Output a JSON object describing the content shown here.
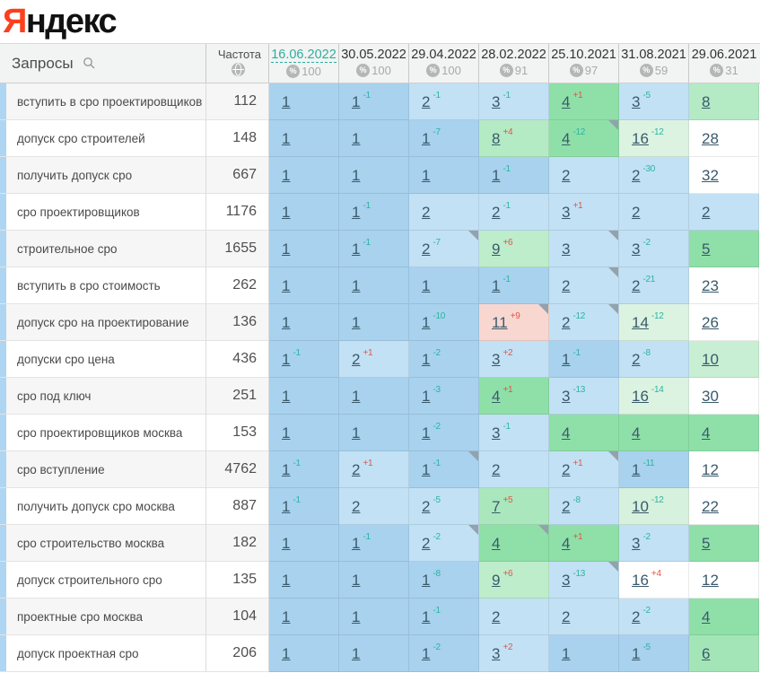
{
  "logo": {
    "first": "Я",
    "rest": "ндекс"
  },
  "palette": {
    "brand_red": "#fc3f1d",
    "selected_date": "#2eae9c",
    "delta_good": "#2cb3a0",
    "delta_bad": "#e25449",
    "position_link": "#3a5a6b",
    "stripe_blue": "#aed6f2",
    "cell_blue": "#a8d2ee",
    "cell_lightblue": "#c2e1f5",
    "cell_green": "#8ee0a8",
    "cell_pink": "#f8d7d1"
  },
  "header": {
    "queries_label": "Запросы",
    "frequency_label": "Частота",
    "columns": [
      {
        "date": "16.06.2022",
        "coverage": "100",
        "selected": true
      },
      {
        "date": "30.05.2022",
        "coverage": "100",
        "selected": false
      },
      {
        "date": "29.04.2022",
        "coverage": "100",
        "selected": false
      },
      {
        "date": "28.02.2022",
        "coverage": "91",
        "selected": false
      },
      {
        "date": "25.10.2021",
        "coverage": "97",
        "selected": false
      },
      {
        "date": "31.08.2021",
        "coverage": "59",
        "selected": false
      },
      {
        "date": "29.06.2021",
        "coverage": "31",
        "selected": false
      }
    ]
  },
  "table": {
    "rows": [
      {
        "keyword": "вступить в сро проектировщиков",
        "frequency": "112",
        "cells": [
          {
            "pos": "1",
            "bg": "#a8d2ee"
          },
          {
            "pos": "1",
            "delta": "-1",
            "bg": "#a8d2ee"
          },
          {
            "pos": "2",
            "delta": "-1",
            "bg": "#c2e1f5"
          },
          {
            "pos": "3",
            "delta": "-1",
            "bg": "#c2e1f5"
          },
          {
            "pos": "4",
            "delta": "+1",
            "bg": "#8ee0a8"
          },
          {
            "pos": "3",
            "delta": "-5",
            "bg": "#c2e1f5"
          },
          {
            "pos": "8",
            "bg": "#b4eac4"
          }
        ]
      },
      {
        "keyword": "допуск сро строителей",
        "frequency": "148",
        "cells": [
          {
            "pos": "1",
            "bg": "#a8d2ee"
          },
          {
            "pos": "1",
            "bg": "#a8d2ee"
          },
          {
            "pos": "1",
            "delta": "-7",
            "bg": "#a8d2ee"
          },
          {
            "pos": "8",
            "delta": "+4",
            "bg": "#b4eac4"
          },
          {
            "pos": "4",
            "delta": "-12",
            "bg": "#8ee0a8",
            "marker": true
          },
          {
            "pos": "16",
            "delta": "-12",
            "bg": "#dcf3e1"
          },
          {
            "pos": "28",
            "bg": "#ffffff"
          }
        ]
      },
      {
        "keyword": "получить допуск сро",
        "frequency": "667",
        "cells": [
          {
            "pos": "1",
            "bg": "#a8d2ee"
          },
          {
            "pos": "1",
            "bg": "#a8d2ee"
          },
          {
            "pos": "1",
            "bg": "#a8d2ee"
          },
          {
            "pos": "1",
            "delta": "-1",
            "bg": "#a8d2ee"
          },
          {
            "pos": "2",
            "bg": "#c2e1f5"
          },
          {
            "pos": "2",
            "delta": "-30",
            "bg": "#c2e1f5"
          },
          {
            "pos": "32",
            "bg": "#ffffff"
          }
        ]
      },
      {
        "keyword": "сро проектировщиков",
        "frequency": "1176",
        "cells": [
          {
            "pos": "1",
            "bg": "#a8d2ee"
          },
          {
            "pos": "1",
            "delta": "-1",
            "bg": "#a8d2ee"
          },
          {
            "pos": "2",
            "bg": "#c2e1f5"
          },
          {
            "pos": "2",
            "delta": "-1",
            "bg": "#c2e1f5"
          },
          {
            "pos": "3",
            "delta": "+1",
            "bg": "#c2e1f5"
          },
          {
            "pos": "2",
            "bg": "#c2e1f5"
          },
          {
            "pos": "2",
            "bg": "#c2e1f5"
          }
        ]
      },
      {
        "keyword": "строительное сро",
        "frequency": "1655",
        "cells": [
          {
            "pos": "1",
            "bg": "#a8d2ee"
          },
          {
            "pos": "1",
            "delta": "-1",
            "bg": "#a8d2ee"
          },
          {
            "pos": "2",
            "delta": "-7",
            "bg": "#c2e1f5",
            "marker": true
          },
          {
            "pos": "9",
            "delta": "+6",
            "bg": "#beedcb"
          },
          {
            "pos": "3",
            "bg": "#c2e1f5",
            "marker": true
          },
          {
            "pos": "3",
            "delta": "-2",
            "bg": "#c2e1f5"
          },
          {
            "pos": "5",
            "bg": "#8ee0a8"
          }
        ]
      },
      {
        "keyword": "вступить в сро стоимость",
        "frequency": "262",
        "cells": [
          {
            "pos": "1",
            "bg": "#a8d2ee"
          },
          {
            "pos": "1",
            "bg": "#a8d2ee"
          },
          {
            "pos": "1",
            "bg": "#a8d2ee"
          },
          {
            "pos": "1",
            "delta": "-1",
            "bg": "#a8d2ee"
          },
          {
            "pos": "2",
            "bg": "#c2e1f5",
            "marker": true
          },
          {
            "pos": "2",
            "delta": "-21",
            "bg": "#c2e1f5"
          },
          {
            "pos": "23",
            "bg": "#ffffff"
          }
        ]
      },
      {
        "keyword": "допуск сро на проектирование",
        "frequency": "136",
        "cells": [
          {
            "pos": "1",
            "bg": "#a8d2ee"
          },
          {
            "pos": "1",
            "bg": "#a8d2ee"
          },
          {
            "pos": "1",
            "delta": "-10",
            "bg": "#a8d2ee"
          },
          {
            "pos": "11",
            "delta": "+9",
            "bg": "#f8d7d1",
            "marker": true
          },
          {
            "pos": "2",
            "delta": "-12",
            "bg": "#c2e1f5",
            "marker": true
          },
          {
            "pos": "14",
            "delta": "-12",
            "bg": "#dcf3e1"
          },
          {
            "pos": "26",
            "bg": "#ffffff"
          }
        ]
      },
      {
        "keyword": "допуски сро цена",
        "frequency": "436",
        "cells": [
          {
            "pos": "1",
            "delta": "-1",
            "bg": "#a8d2ee"
          },
          {
            "pos": "2",
            "delta": "+1",
            "bg": "#c2e1f5"
          },
          {
            "pos": "1",
            "delta": "-2",
            "bg": "#a8d2ee"
          },
          {
            "pos": "3",
            "delta": "+2",
            "bg": "#c2e1f5"
          },
          {
            "pos": "1",
            "delta": "-1",
            "bg": "#a8d2ee"
          },
          {
            "pos": "2",
            "delta": "-8",
            "bg": "#c2e1f5"
          },
          {
            "pos": "10",
            "bg": "#c8efd4"
          }
        ]
      },
      {
        "keyword": "сро под ключ",
        "frequency": "251",
        "cells": [
          {
            "pos": "1",
            "bg": "#a8d2ee"
          },
          {
            "pos": "1",
            "bg": "#a8d2ee"
          },
          {
            "pos": "1",
            "delta": "-3",
            "bg": "#a8d2ee"
          },
          {
            "pos": "4",
            "delta": "+1",
            "bg": "#8ee0a8"
          },
          {
            "pos": "3",
            "delta": "-13",
            "bg": "#c2e1f5"
          },
          {
            "pos": "16",
            "delta": "-14",
            "bg": "#dcf3e1"
          },
          {
            "pos": "30",
            "bg": "#ffffff"
          }
        ]
      },
      {
        "keyword": "сро проектировщиков москва",
        "frequency": "153",
        "cells": [
          {
            "pos": "1",
            "bg": "#a8d2ee"
          },
          {
            "pos": "1",
            "bg": "#a8d2ee"
          },
          {
            "pos": "1",
            "delta": "-2",
            "bg": "#a8d2ee"
          },
          {
            "pos": "3",
            "delta": "-1",
            "bg": "#c2e1f5"
          },
          {
            "pos": "4",
            "bg": "#8ee0a8"
          },
          {
            "pos": "4",
            "bg": "#8ee0a8"
          },
          {
            "pos": "4",
            "bg": "#8ee0a8"
          }
        ]
      },
      {
        "keyword": "сро вступление",
        "frequency": "4762",
        "cells": [
          {
            "pos": "1",
            "delta": "-1",
            "bg": "#a8d2ee"
          },
          {
            "pos": "2",
            "delta": "+1",
            "bg": "#c2e1f5"
          },
          {
            "pos": "1",
            "delta": "-1",
            "bg": "#a8d2ee",
            "marker": true
          },
          {
            "pos": "2",
            "bg": "#c2e1f5"
          },
          {
            "pos": "2",
            "delta": "+1",
            "bg": "#c2e1f5",
            "marker": true
          },
          {
            "pos": "1",
            "delta": "-11",
            "bg": "#a8d2ee"
          },
          {
            "pos": "12",
            "bg": "#ffffff"
          }
        ]
      },
      {
        "keyword": "получить допуск сро москва",
        "frequency": "887",
        "cells": [
          {
            "pos": "1",
            "delta": "-1",
            "bg": "#a8d2ee"
          },
          {
            "pos": "2",
            "bg": "#c2e1f5"
          },
          {
            "pos": "2",
            "delta": "-5",
            "bg": "#c2e1f5"
          },
          {
            "pos": "7",
            "delta": "+5",
            "bg": "#aae7bc"
          },
          {
            "pos": "2",
            "delta": "-8",
            "bg": "#c2e1f5"
          },
          {
            "pos": "10",
            "delta": "-12",
            "bg": "#d6f1dd"
          },
          {
            "pos": "22",
            "bg": "#ffffff"
          }
        ]
      },
      {
        "keyword": "сро строительство москва",
        "frequency": "182",
        "cells": [
          {
            "pos": "1",
            "bg": "#a8d2ee"
          },
          {
            "pos": "1",
            "delta": "-1",
            "bg": "#a8d2ee"
          },
          {
            "pos": "2",
            "delta": "-2",
            "bg": "#c2e1f5",
            "marker": true
          },
          {
            "pos": "4",
            "bg": "#8ee0a8",
            "marker": true
          },
          {
            "pos": "4",
            "delta": "+1",
            "bg": "#8ee0a8"
          },
          {
            "pos": "3",
            "delta": "-2",
            "bg": "#c2e1f5"
          },
          {
            "pos": "5",
            "bg": "#8ee0a8"
          }
        ]
      },
      {
        "keyword": "допуск строительного сро",
        "frequency": "135",
        "cells": [
          {
            "pos": "1",
            "bg": "#a8d2ee"
          },
          {
            "pos": "1",
            "bg": "#a8d2ee"
          },
          {
            "pos": "1",
            "delta": "-8",
            "bg": "#a8d2ee"
          },
          {
            "pos": "9",
            "delta": "+6",
            "bg": "#beedcb"
          },
          {
            "pos": "3",
            "delta": "-13",
            "bg": "#c2e1f5",
            "marker": true
          },
          {
            "pos": "16",
            "delta": "+4",
            "bg": "#ffffff"
          },
          {
            "pos": "12",
            "bg": "#ffffff"
          }
        ]
      },
      {
        "keyword": "проектные сро москва",
        "frequency": "104",
        "cells": [
          {
            "pos": "1",
            "bg": "#a8d2ee"
          },
          {
            "pos": "1",
            "bg": "#a8d2ee"
          },
          {
            "pos": "1",
            "delta": "-1",
            "bg": "#a8d2ee"
          },
          {
            "pos": "2",
            "bg": "#c2e1f5"
          },
          {
            "pos": "2",
            "bg": "#c2e1f5"
          },
          {
            "pos": "2",
            "delta": "-2",
            "bg": "#c2e1f5"
          },
          {
            "pos": "4",
            "bg": "#8ee0a8"
          }
        ]
      },
      {
        "keyword": "допуск проектная сро",
        "frequency": "206",
        "cells": [
          {
            "pos": "1",
            "bg": "#a8d2ee"
          },
          {
            "pos": "1",
            "bg": "#a8d2ee"
          },
          {
            "pos": "1",
            "delta": "-2",
            "bg": "#a8d2ee"
          },
          {
            "pos": "3",
            "delta": "+2",
            "bg": "#c2e1f5"
          },
          {
            "pos": "1",
            "bg": "#a8d2ee"
          },
          {
            "pos": "1",
            "delta": "-5",
            "bg": "#a8d2ee"
          },
          {
            "pos": "6",
            "bg": "#a4e5b7"
          }
        ]
      }
    ]
  }
}
